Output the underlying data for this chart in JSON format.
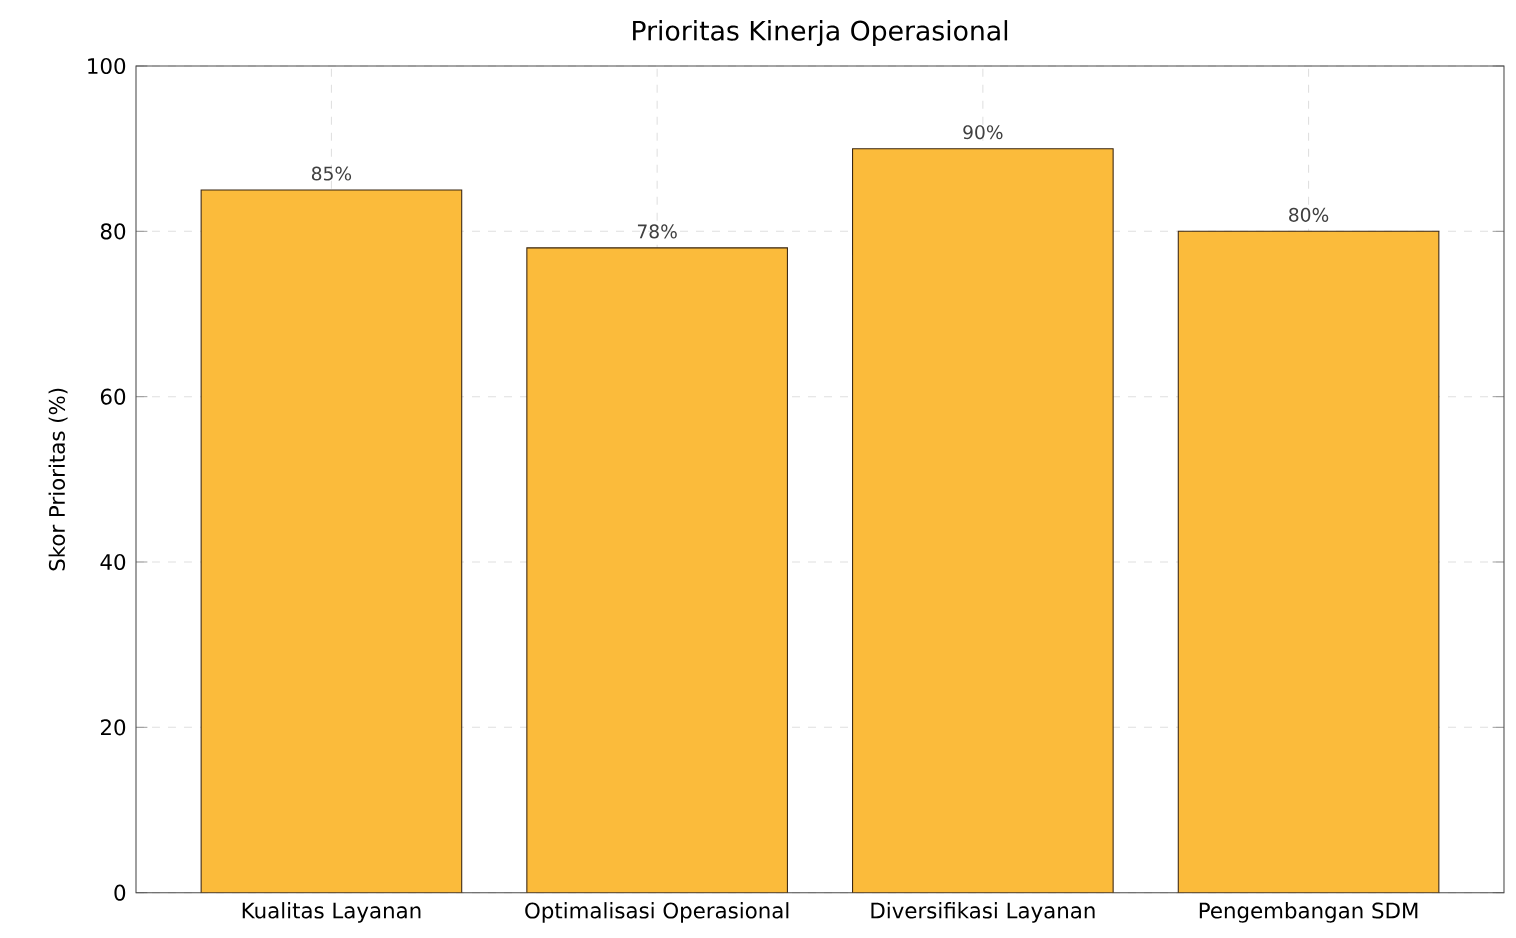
{
  "chart_data": {
    "type": "bar",
    "title": "Prioritas Kinerja Operasional",
    "ylabel": "Skor Prioritas (%)",
    "categories": [
      "Kualitas Layanan",
      "Optimalisasi Operasional",
      "Diversifikasi Layanan",
      "Pengembangan SDM"
    ],
    "values": [
      85,
      78,
      90,
      80
    ],
    "value_labels": [
      "85%",
      "78%",
      "90%",
      "80%"
    ],
    "color": "#fbbb3b",
    "ylim": [
      0,
      100
    ],
    "yticks": [
      0,
      20,
      40,
      60,
      80,
      100
    ],
    "grid": true
  }
}
